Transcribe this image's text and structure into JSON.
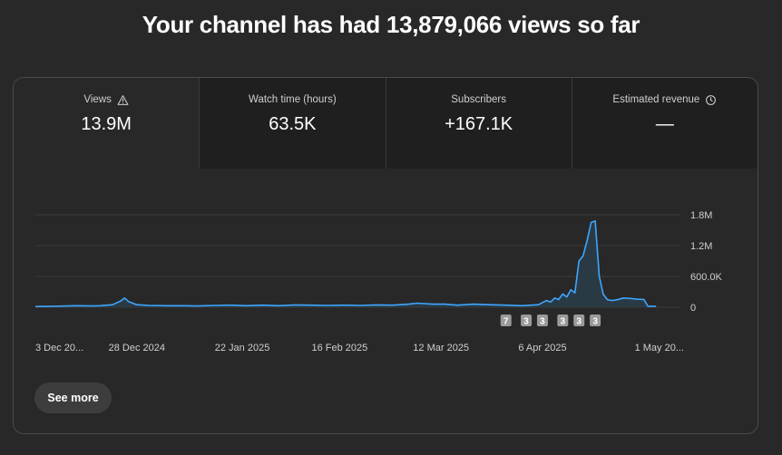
{
  "headline": "Your channel has had 13,879,066 views so far",
  "metrics": [
    {
      "label": "Views",
      "value": "13.9M",
      "icon": "warning-icon"
    },
    {
      "label": "Watch time (hours)",
      "value": "63.5K"
    },
    {
      "label": "Subscribers",
      "value": "+167.1K"
    },
    {
      "label": "Estimated revenue",
      "value": "—",
      "icon": "clock-icon"
    }
  ],
  "see_more_label": "See more",
  "colors": {
    "line": "#3ea6ff",
    "area": "#2a3a44",
    "grid": "#3c3c3c",
    "background": "#282828",
    "marker": "#9a9a9a"
  },
  "chart_data": {
    "type": "area",
    "x_tick_labels": [
      "3 Dec 20...",
      "28 Dec 2024",
      "22 Jan 2025",
      "16 Feb 2025",
      "12 Mar 2025",
      "6 Apr 2025",
      "1 May 20..."
    ],
    "y_tick_labels": [
      "1.8M",
      "1.2M",
      "600.0K",
      "0"
    ],
    "ylim": [
      0,
      1800000
    ],
    "grid": true,
    "x_range_days": [
      0,
      159
    ],
    "x_tick_days": [
      0,
      25,
      51,
      75,
      100,
      125,
      150
    ],
    "series": [
      {
        "points": [
          [
            0,
            15000
          ],
          [
            4,
            20000
          ],
          [
            8,
            25000
          ],
          [
            10,
            30000
          ],
          [
            14,
            25000
          ],
          [
            16,
            30000
          ],
          [
            19,
            50000
          ],
          [
            21,
            120000
          ],
          [
            22,
            180000
          ],
          [
            23,
            110000
          ],
          [
            25,
            50000
          ],
          [
            28,
            35000
          ],
          [
            32,
            30000
          ],
          [
            36,
            30000
          ],
          [
            40,
            25000
          ],
          [
            44,
            35000
          ],
          [
            48,
            40000
          ],
          [
            52,
            30000
          ],
          [
            56,
            40000
          ],
          [
            60,
            30000
          ],
          [
            64,
            45000
          ],
          [
            68,
            40000
          ],
          [
            72,
            35000
          ],
          [
            76,
            40000
          ],
          [
            80,
            35000
          ],
          [
            84,
            45000
          ],
          [
            88,
            40000
          ],
          [
            92,
            60000
          ],
          [
            94,
            80000
          ],
          [
            96,
            70000
          ],
          [
            98,
            60000
          ],
          [
            101,
            60000
          ],
          [
            104,
            40000
          ],
          [
            108,
            60000
          ],
          [
            112,
            50000
          ],
          [
            116,
            40000
          ],
          [
            120,
            30000
          ],
          [
            124,
            50000
          ],
          [
            126,
            130000
          ],
          [
            127,
            100000
          ],
          [
            128,
            180000
          ],
          [
            129,
            150000
          ],
          [
            130,
            260000
          ],
          [
            131,
            200000
          ],
          [
            132,
            340000
          ],
          [
            133,
            280000
          ],
          [
            134,
            900000
          ],
          [
            135,
            1000000
          ],
          [
            136,
            1300000
          ],
          [
            137,
            1650000
          ],
          [
            138,
            1680000
          ],
          [
            139,
            600000
          ],
          [
            140,
            250000
          ],
          [
            141,
            150000
          ],
          [
            142,
            130000
          ],
          [
            143,
            140000
          ],
          [
            145,
            180000
          ],
          [
            147,
            170000
          ],
          [
            148,
            160000
          ],
          [
            150,
            150000
          ],
          [
            151,
            20000
          ],
          [
            153,
            20000
          ]
        ]
      }
    ],
    "markers": [
      {
        "day": 116,
        "label": "7"
      },
      {
        "day": 121,
        "label": "3"
      },
      {
        "day": 125,
        "label": "3"
      },
      {
        "day": 130,
        "label": "3"
      },
      {
        "day": 134,
        "label": "3"
      },
      {
        "day": 138,
        "label": "3"
      }
    ]
  }
}
